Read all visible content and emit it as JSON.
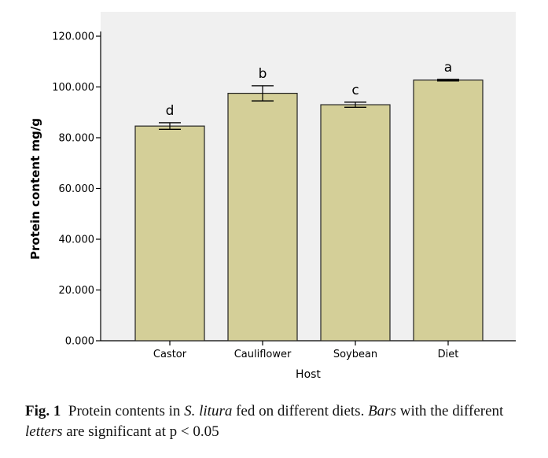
{
  "chart_data": {
    "type": "bar",
    "categories": [
      "Castor",
      "Cauliflower",
      "Soybean",
      "Diet"
    ],
    "values": [
      84.6,
      97.5,
      93.0,
      102.7
    ],
    "error": [
      1.3,
      3.0,
      1.0,
      0.3
    ],
    "significance_letters": [
      "d",
      "b",
      "c",
      "a"
    ],
    "xlabel": "Host",
    "ylabel": "Protein content mg/g",
    "ylim": [
      0,
      120
    ],
    "yticks": [
      0,
      20,
      40,
      60,
      80,
      100,
      120
    ],
    "ytick_labels": [
      "0.000",
      "20.000",
      "40.000",
      "60.000",
      "80.000",
      "100.000",
      "120.000"
    ],
    "grid": false,
    "colors": {
      "bar": "#d4cf98",
      "bar_edge": "#222222",
      "plot_bg": "#f0f0f0"
    }
  },
  "caption": {
    "label": "Fig. 1",
    "text_1": "Protein contents in ",
    "species": "S. litura",
    "text_2": " fed on different diets. ",
    "bars_word": "Bars",
    "text_3": " with the different ",
    "letters_word": "letters",
    "text_4": " are significant at p < 0.05"
  }
}
